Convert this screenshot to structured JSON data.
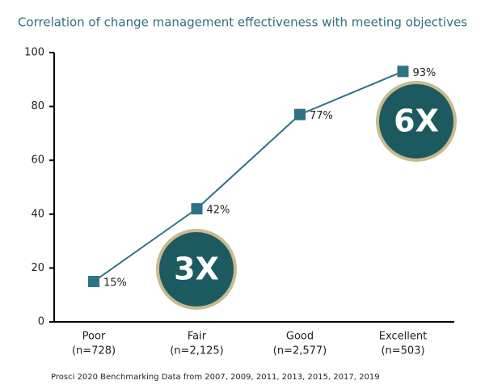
{
  "chart_data": {
    "type": "line",
    "title": "Correlation of change management effectiveness with meeting objectives",
    "categories": [
      "Poor",
      "Fair",
      "Good",
      "Excellent"
    ],
    "category_counts": [
      "(n=728)",
      "(n=2,125)",
      "(n=2,577)",
      "(n=503)"
    ],
    "series": [
      {
        "color": "#2e7283",
        "values": [
          15,
          42,
          77,
          93
        ],
        "value_labels": [
          "15%",
          "42%",
          "77%",
          "93%"
        ]
      }
    ],
    "ylim": [
      0,
      100
    ],
    "yticks": [
      0,
      20,
      40,
      60,
      80,
      100
    ],
    "grid": false,
    "annotations": [
      "3X",
      "6X"
    ],
    "source": "Prosci 2020 Benchmarking Data from 2007, 2009, 2011, 2013, 2015, 2017, 2019"
  }
}
